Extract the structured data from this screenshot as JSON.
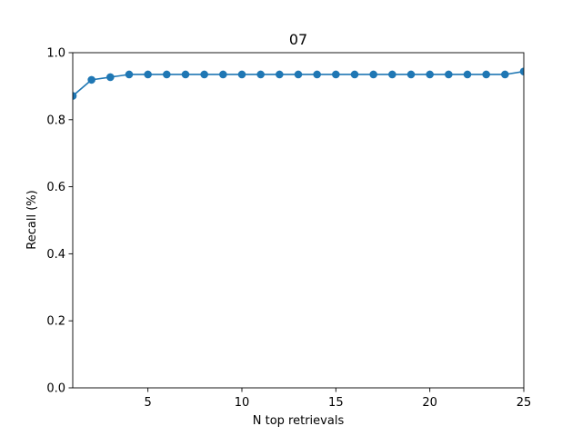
{
  "chart_data": {
    "type": "line",
    "title": "07",
    "xlabel": "N top retrievals",
    "ylabel": "Recall (%)",
    "xlim": [
      1,
      25
    ],
    "ylim": [
      0.0,
      1.0
    ],
    "x_ticks": [
      5,
      10,
      15,
      20,
      25
    ],
    "x_tick_labels": [
      "5",
      "10",
      "15",
      "20",
      "25"
    ],
    "y_ticks": [
      0.0,
      0.2,
      0.4,
      0.6,
      0.8,
      1.0
    ],
    "y_tick_labels": [
      "0.0",
      "0.2",
      "0.4",
      "0.6",
      "0.8",
      "1.0"
    ],
    "grid": false,
    "series": [
      {
        "color": "#1f77b4",
        "marker": "circle",
        "x": [
          1,
          2,
          3,
          4,
          5,
          6,
          7,
          8,
          9,
          10,
          11,
          12,
          13,
          14,
          15,
          16,
          17,
          18,
          19,
          20,
          21,
          22,
          23,
          24,
          25
        ],
        "values": [
          0.871,
          0.919,
          0.927,
          0.935,
          0.935,
          0.935,
          0.935,
          0.935,
          0.935,
          0.935,
          0.935,
          0.935,
          0.935,
          0.935,
          0.935,
          0.935,
          0.935,
          0.935,
          0.935,
          0.935,
          0.935,
          0.935,
          0.935,
          0.935,
          0.944
        ]
      }
    ]
  }
}
